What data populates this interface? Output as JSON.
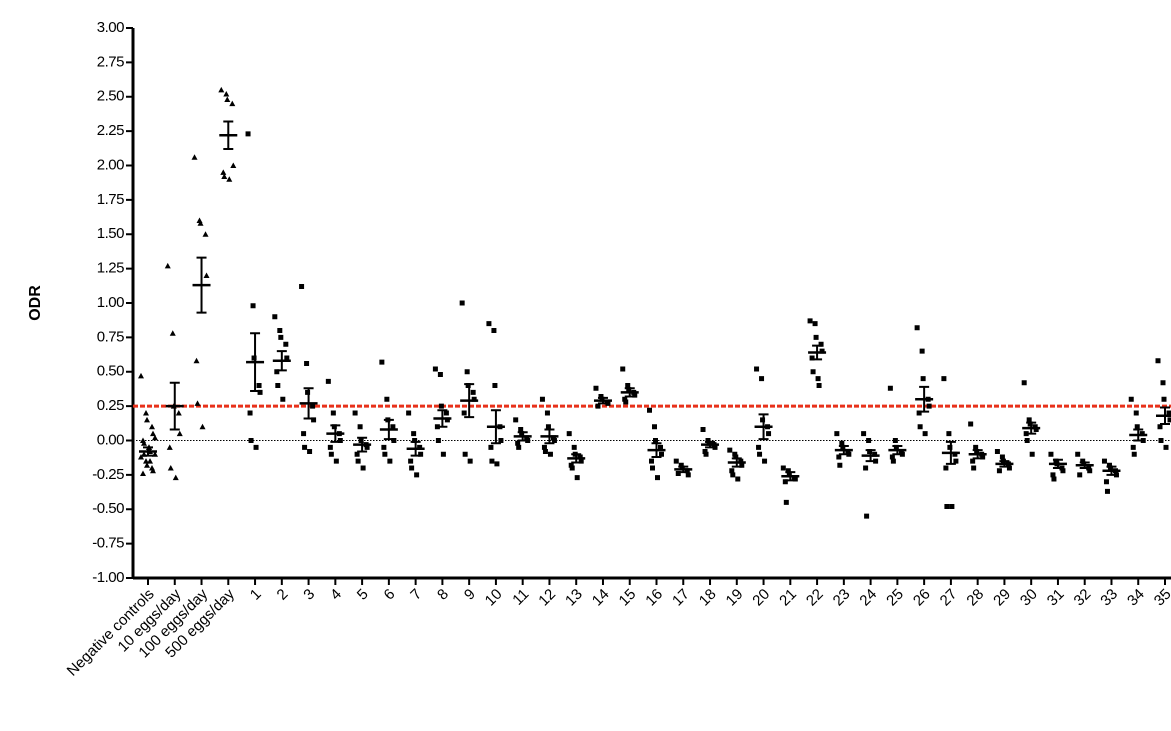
{
  "chart_data": {
    "type": "dot",
    "y_label": "ODR",
    "ylim": [
      -1,
      3
    ],
    "yticks": [
      {
        "value": -1,
        "label": "-1.00"
      },
      {
        "value": -0.75,
        "label": "-0.75"
      },
      {
        "value": -0.5,
        "label": "-0.50"
      },
      {
        "value": -0.25,
        "label": "-0.25"
      },
      {
        "value": 0,
        "label": "0.00"
      },
      {
        "value": 0.25,
        "label": "0.25"
      },
      {
        "value": 0.5,
        "label": "0.50"
      },
      {
        "value": 0.75,
        "label": "0.75"
      },
      {
        "value": 1,
        "label": "1.00"
      },
      {
        "value": 1.25,
        "label": "1.25"
      },
      {
        "value": 1.5,
        "label": "1.50"
      },
      {
        "value": 1.75,
        "label": "1.75"
      },
      {
        "value": 2,
        "label": "2.00"
      },
      {
        "value": 2.25,
        "label": "2.25"
      },
      {
        "value": 2.5,
        "label": "2.50"
      },
      {
        "value": 2.75,
        "label": "2.75"
      },
      {
        "value": 3,
        "label": "3.00"
      }
    ],
    "reference_lines": [
      {
        "value": 0.25,
        "color": "#e8311a",
        "style": "dashed"
      },
      {
        "value": 0,
        "color": "#000000",
        "style": "dotted"
      }
    ],
    "color": "#000000",
    "categories": [
      "Negative controls",
      "10 eggs/day",
      "100 eggs/day",
      "500 eggs/day",
      "1",
      "2",
      "3",
      "4",
      "5",
      "6",
      "7",
      "8",
      "9",
      "10",
      "11",
      "12",
      "13",
      "14",
      "15",
      "16",
      "17",
      "18",
      "19",
      "20",
      "21",
      "22",
      "23",
      "24",
      "25",
      "26",
      "27",
      "28",
      "29",
      "30",
      "31",
      "32",
      "33",
      "34",
      "35"
    ],
    "groups": [
      {
        "marker": "triangle",
        "values": [
          0.47,
          0.2,
          0.15,
          0.1,
          0.05,
          0,
          -0.02,
          -0.05,
          -0.08,
          -0.1,
          -0.12,
          -0.15,
          -0.18,
          -0.2,
          -0.22,
          -0.24,
          -0.1,
          -0.05,
          -0.15,
          0.02
        ],
        "mean": -0.08,
        "sem": 0.03
      },
      {
        "marker": "triangle",
        "values": [
          1.27,
          0.78,
          0.25,
          0.2,
          0.05,
          -0.05,
          -0.2,
          -0.27
        ],
        "mean": 0.25,
        "sem": 0.17
      },
      {
        "marker": "triangle",
        "values": [
          2.06,
          1.6,
          1.58,
          1.5,
          1.2,
          0.58,
          0.27,
          0.1
        ],
        "mean": 1.13,
        "sem": 0.2
      },
      {
        "marker": "triangle",
        "values": [
          2.55,
          2.52,
          2.48,
          2.45,
          2.0,
          1.95,
          1.92,
          1.9
        ],
        "mean": 2.22,
        "sem": 0.1
      },
      {
        "marker": "square",
        "values": [
          2.23,
          0.98,
          0.6,
          0.4,
          0.35,
          0.2,
          0,
          -0.05
        ],
        "mean": 0.57,
        "sem": 0.21
      },
      {
        "marker": "square",
        "values": [
          0.9,
          0.8,
          0.75,
          0.7,
          0.6,
          0.5,
          0.4,
          0.3
        ],
        "mean": 0.58,
        "sem": 0.07
      },
      {
        "marker": "square",
        "values": [
          1.12,
          0.56,
          0.35,
          0.25,
          0.15,
          0.05,
          -0.05,
          -0.08
        ],
        "mean": 0.27,
        "sem": 0.11
      },
      {
        "marker": "square",
        "values": [
          0.43,
          0.2,
          0.1,
          0.05,
          0,
          -0.05,
          -0.1,
          -0.15
        ],
        "mean": 0.05,
        "sem": 0.06
      },
      {
        "marker": "square",
        "values": [
          0.2,
          0.1,
          0,
          -0.03,
          -0.05,
          -0.1,
          -0.15,
          -0.2
        ],
        "mean": -0.03,
        "sem": 0.05
      },
      {
        "marker": "square",
        "values": [
          0.57,
          0.3,
          0.15,
          0.1,
          0,
          -0.05,
          -0.1,
          -0.15
        ],
        "mean": 0.08,
        "sem": 0.07
      },
      {
        "marker": "square",
        "values": [
          0.2,
          0.05,
          0,
          -0.05,
          -0.1,
          -0.15,
          -0.2,
          -0.25
        ],
        "mean": -0.06,
        "sem": 0.05
      },
      {
        "marker": "square",
        "values": [
          0.52,
          0.48,
          0.25,
          0.2,
          0.15,
          0.1,
          0,
          -0.1
        ],
        "mean": 0.16,
        "sem": 0.06
      },
      {
        "marker": "square",
        "values": [
          1.0,
          0.5,
          0.4,
          0.35,
          0.3,
          0.2,
          -0.1,
          -0.15
        ],
        "mean": 0.29,
        "sem": 0.12
      },
      {
        "marker": "square",
        "values": [
          0.85,
          0.8,
          0.4,
          0.1,
          0,
          -0.05,
          -0.15,
          -0.17
        ],
        "mean": 0.1,
        "sem": 0.12
      },
      {
        "marker": "square",
        "values": [
          0.15,
          0.08,
          0.05,
          0.02,
          0,
          -0.02,
          -0.05
        ],
        "mean": 0.03,
        "sem": 0.03
      },
      {
        "marker": "square",
        "values": [
          0.3,
          0.2,
          0.1,
          0.02,
          0,
          -0.05,
          -0.08,
          -0.1
        ],
        "mean": 0.03,
        "sem": 0.05
      },
      {
        "marker": "square",
        "values": [
          0.05,
          -0.05,
          -0.1,
          -0.12,
          -0.15,
          -0.18,
          -0.2,
          -0.27
        ],
        "mean": -0.13,
        "sem": 0.03
      },
      {
        "marker": "square",
        "values": [
          0.38,
          0.32,
          0.3,
          0.28,
          0.27,
          0.25
        ],
        "mean": 0.29,
        "sem": 0.02
      },
      {
        "marker": "square",
        "values": [
          0.52,
          0.4,
          0.37,
          0.35,
          0.33,
          0.3,
          0.28
        ],
        "mean": 0.35,
        "sem": 0.03
      },
      {
        "marker": "square",
        "values": [
          0.22,
          0.1,
          0,
          -0.05,
          -0.1,
          -0.15,
          -0.2,
          -0.27
        ],
        "mean": -0.07,
        "sem": 0.05
      },
      {
        "marker": "square",
        "values": [
          -0.15,
          -0.18,
          -0.2,
          -0.22,
          -0.25,
          -0.24
        ],
        "mean": -0.21,
        "sem": 0.02
      },
      {
        "marker": "square",
        "values": [
          0.08,
          0,
          -0.02,
          -0.03,
          -0.05,
          -0.08,
          -0.1
        ],
        "mean": -0.03,
        "sem": 0.02
      },
      {
        "marker": "square",
        "values": [
          -0.07,
          -0.1,
          -0.12,
          -0.15,
          -0.18,
          -0.22,
          -0.25,
          -0.28
        ],
        "mean": -0.16,
        "sem": 0.03
      },
      {
        "marker": "square",
        "values": [
          0.52,
          0.45,
          0.15,
          0.1,
          0.05,
          -0.05,
          -0.1,
          -0.15
        ],
        "mean": 0.1,
        "sem": 0.09
      },
      {
        "marker": "square",
        "values": [
          -0.2,
          -0.22,
          -0.25,
          -0.27,
          -0.28,
          -0.3,
          -0.45
        ],
        "mean": -0.26,
        "sem": 0.03
      },
      {
        "marker": "square",
        "values": [
          0.87,
          0.85,
          0.75,
          0.7,
          0.65,
          0.6,
          0.5,
          0.45,
          0.4
        ],
        "mean": 0.64,
        "sem": 0.05
      },
      {
        "marker": "square",
        "values": [
          0.05,
          -0.02,
          -0.05,
          -0.08,
          -0.1,
          -0.12,
          -0.18
        ],
        "mean": -0.07,
        "sem": 0.03
      },
      {
        "marker": "square",
        "values": [
          0.05,
          0,
          -0.08,
          -0.1,
          -0.15,
          -0.2,
          -0.55
        ],
        "mean": -0.11,
        "sem": 0.04
      },
      {
        "marker": "square",
        "values": [
          0.38,
          0,
          -0.05,
          -0.08,
          -0.1,
          -0.12,
          -0.15
        ],
        "mean": -0.07,
        "sem": 0.03
      },
      {
        "marker": "square",
        "values": [
          0.82,
          0.65,
          0.45,
          0.3,
          0.25,
          0.2,
          0.1,
          0.05
        ],
        "mean": 0.3,
        "sem": 0.09
      },
      {
        "marker": "square",
        "values": [
          0.45,
          0.05,
          -0.05,
          -0.1,
          -0.15,
          -0.2,
          -0.48,
          -0.48
        ],
        "mean": -0.09,
        "sem": 0.08
      },
      {
        "marker": "square",
        "values": [
          0.12,
          -0.05,
          -0.08,
          -0.1,
          -0.12,
          -0.15,
          -0.2
        ],
        "mean": -0.1,
        "sem": 0.03
      },
      {
        "marker": "square",
        "values": [
          -0.08,
          -0.12,
          -0.15,
          -0.17,
          -0.2,
          -0.22
        ],
        "mean": -0.17,
        "sem": 0.02
      },
      {
        "marker": "square",
        "values": [
          0.42,
          0.15,
          0.12,
          0.1,
          0.08,
          0.05,
          0,
          -0.1
        ],
        "mean": 0.09,
        "sem": 0.04
      },
      {
        "marker": "square",
        "values": [
          -0.1,
          -0.15,
          -0.17,
          -0.2,
          -0.22,
          -0.25,
          -0.28
        ],
        "mean": -0.17,
        "sem": 0.03
      },
      {
        "marker": "square",
        "values": [
          -0.1,
          -0.15,
          -0.17,
          -0.2,
          -0.22,
          -0.25
        ],
        "mean": -0.18,
        "sem": 0.02
      },
      {
        "marker": "square",
        "values": [
          -0.15,
          -0.18,
          -0.2,
          -0.22,
          -0.25,
          -0.3,
          -0.37
        ],
        "mean": -0.22,
        "sem": 0.03
      },
      {
        "marker": "square",
        "values": [
          0.3,
          0.2,
          0.1,
          0.05,
          0,
          -0.05,
          -0.1
        ],
        "mean": 0.04,
        "sem": 0.04
      },
      {
        "marker": "square",
        "values": [
          0.58,
          0.42,
          0.3,
          0.2,
          0.15,
          0.1,
          0,
          -0.05
        ],
        "mean": 0.18,
        "sem": 0.06
      }
    ]
  }
}
